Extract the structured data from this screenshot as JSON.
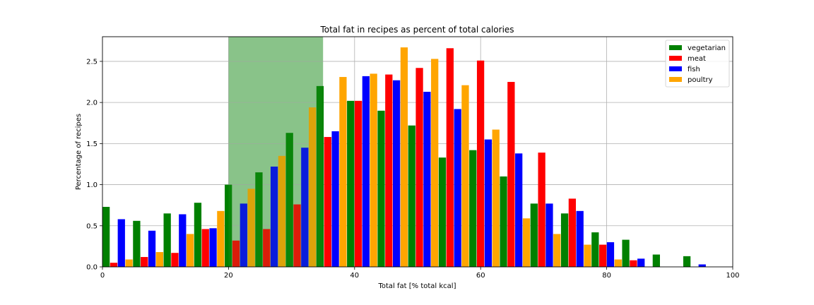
{
  "chart_data": {
    "type": "bar",
    "title": "Total fat in recipes as percent of total calories",
    "xlabel": "Total fat [% total kcal]",
    "ylabel": "Percentage of recipes",
    "xlim": [
      0,
      100
    ],
    "ylim": [
      0,
      2.8
    ],
    "xticks": [
      "0",
      "20",
      "40",
      "60",
      "80",
      "100"
    ],
    "yticks": [
      "0.0",
      "0.5",
      "1.0",
      "1.5",
      "2.0",
      "2.5"
    ],
    "grid": true,
    "legend_position": "top-right",
    "highlight_band": {
      "x_from": 20,
      "x_to": 35,
      "color": "#3a9a3a",
      "opacity": 0.5
    },
    "bin_width": 4.85,
    "bin_starts": [
      0,
      4.85,
      9.7,
      14.55,
      19.4,
      24.25,
      29.1,
      33.95,
      38.8,
      43.65,
      48.5,
      53.35,
      58.2,
      63.05,
      67.9,
      72.75,
      77.6,
      82.45,
      87.3,
      92.15
    ],
    "series": [
      {
        "name": "vegetarian",
        "color": "#008000",
        "values": [
          0.73,
          0.56,
          0.65,
          0.78,
          1.0,
          1.15,
          1.63,
          2.2,
          2.02,
          1.9,
          1.72,
          1.33,
          1.42,
          1.1,
          0.77,
          0.65,
          0.42,
          0.33,
          0.15,
          0.13
        ]
      },
      {
        "name": "meat",
        "color": "#ff0000",
        "values": [
          0.05,
          0.12,
          0.17,
          0.46,
          0.32,
          0.46,
          0.76,
          1.58,
          2.02,
          2.34,
          2.42,
          2.66,
          2.51,
          2.25,
          1.39,
          0.83,
          0.27,
          0.08,
          0,
          0
        ]
      },
      {
        "name": "fish",
        "color": "#0000ff",
        "values": [
          0.58,
          0.44,
          0.64,
          0.47,
          0.77,
          1.22,
          1.45,
          1.65,
          2.32,
          2.27,
          2.13,
          1.92,
          1.55,
          1.38,
          0.77,
          0.68,
          0.3,
          0.1,
          0,
          0.03
        ]
      },
      {
        "name": "poultry",
        "color": "#ffa500",
        "values": [
          0.09,
          0.18,
          0.4,
          0.68,
          0.95,
          1.35,
          1.94,
          2.31,
          2.35,
          2.67,
          2.53,
          2.21,
          1.67,
          0.59,
          0.4,
          0.27,
          0.09,
          0,
          0,
          0
        ]
      }
    ]
  }
}
